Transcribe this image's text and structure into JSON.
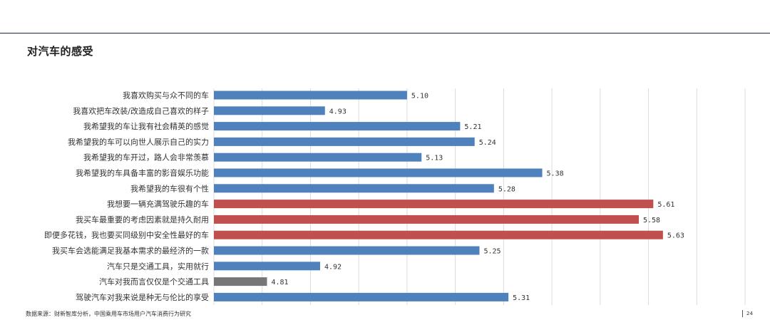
{
  "header": {
    "title": "对汽车的感受"
  },
  "footer": {
    "source": "数据来源：财新智库分析，中国乘用车市场用户汽车消费行为研究",
    "page_number": "24"
  },
  "colors": {
    "blue": "#4f81bd",
    "red": "#c0504d",
    "gray": "#767676",
    "grid": "#dcdcdc"
  },
  "chart_data": {
    "type": "bar",
    "orientation": "horizontal",
    "title": "对汽车的感受",
    "xlabel": "",
    "ylabel": "",
    "xlim": [
      4.7,
      5.8
    ],
    "grid": true,
    "categories": [
      "我喜欢购买与众不同的车",
      "我喜欢把车改装/改造成自己喜欢的样子",
      "我希望我的车让我有社会精英的感觉",
      "我希望我的车可以向世人展示自己的实力",
      "我希望我的车开过，路人会非常羡慕",
      "我希望我的车具备丰富的影音娱乐功能",
      "我希望我的车很有个性",
      "我想要一辆充满驾驶乐趣的车",
      "我买车最重要的考虑因素就是持久耐用",
      "即便多花钱，我也要买同级别中安全性最好的车",
      "我买车会选能满足我基本需求的最经济的一款",
      "汽车只是交通工具，实用就行",
      "汽车对我而言仅仅是个交通工具",
      "驾驶汽车对我来说是种无与伦比的享受"
    ],
    "values": [
      5.1,
      4.93,
      5.21,
      5.24,
      5.13,
      5.38,
      5.28,
      5.61,
      5.58,
      5.63,
      5.25,
      4.92,
      4.81,
      5.31
    ],
    "value_labels": [
      "5.10",
      "4.93",
      "5.21",
      "5.24",
      "5.13",
      "5.38",
      "5.28",
      "5.61",
      "5.58",
      "5.63",
      "5.25",
      "4.92",
      "4.81",
      "5.31"
    ],
    "bar_colors": [
      "blue",
      "blue",
      "blue",
      "blue",
      "blue",
      "blue",
      "blue",
      "red",
      "red",
      "red",
      "blue",
      "blue",
      "gray",
      "blue"
    ]
  }
}
